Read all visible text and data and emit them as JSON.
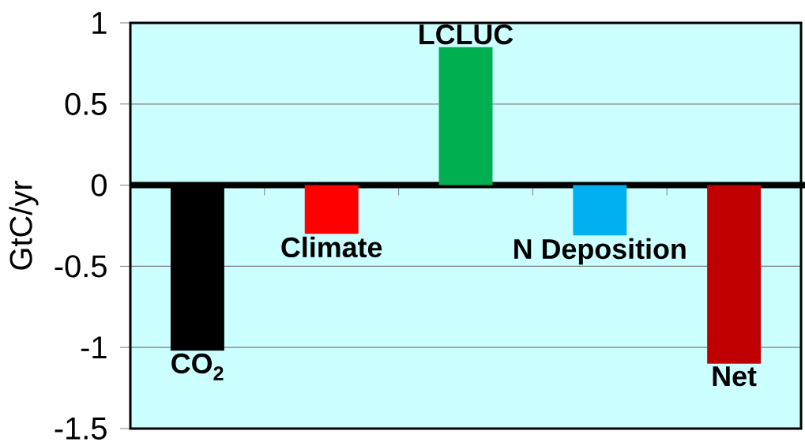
{
  "chart_data": {
    "type": "bar",
    "ylabel": "GtC/yr",
    "categories": [
      "CO$_{2}$",
      "Climate",
      "LCLUC",
      "N Deposition",
      "Net"
    ],
    "values": [
      -1.02,
      -0.3,
      0.85,
      -0.31,
      -1.1
    ],
    "colors": [
      "#000000",
      "#ff0000",
      "#00b050",
      "#00b0f0",
      "#c00000"
    ],
    "ylim": [
      -1.5,
      1
    ],
    "yticks": [
      -1.5,
      -1,
      -0.5,
      0,
      0.5,
      1
    ],
    "grid": "y"
  }
}
